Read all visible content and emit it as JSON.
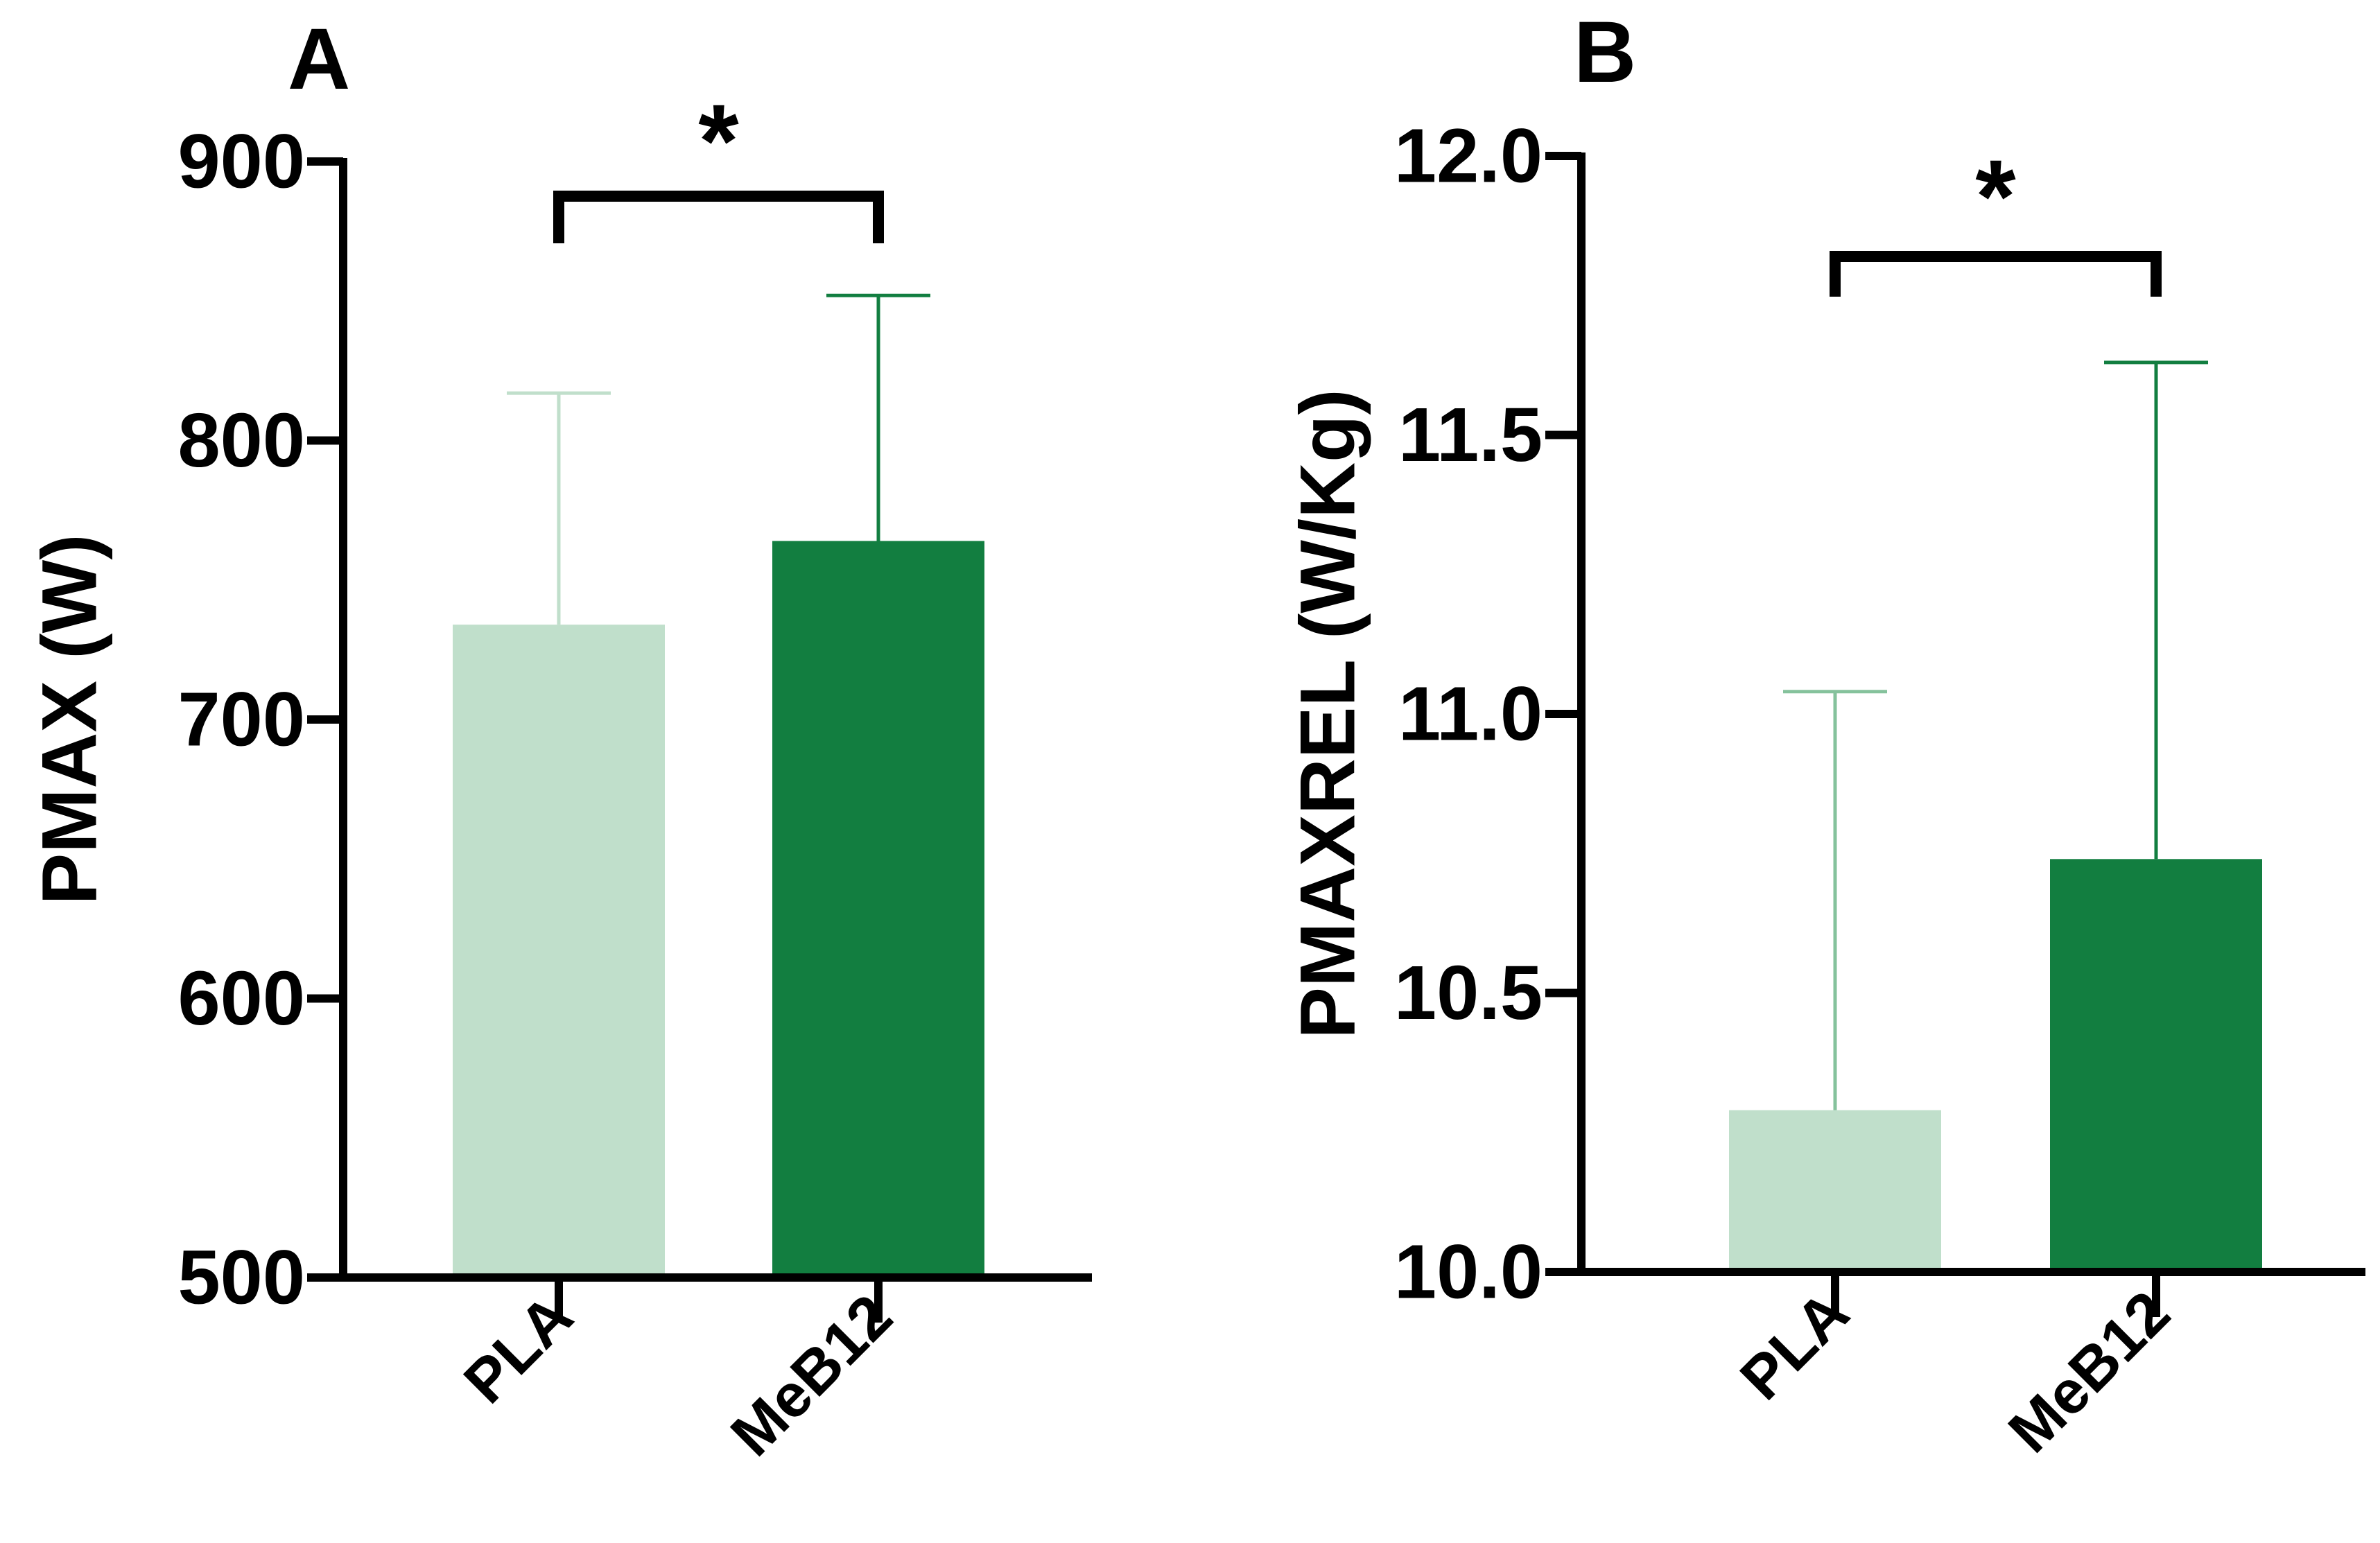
{
  "chart_data": [
    {
      "panel_label": "A",
      "type": "bar",
      "ylabel": "PMAX (W)",
      "categories": [
        "PLA",
        "MeB12"
      ],
      "values": [
        734,
        764
      ],
      "errors": [
        83,
        88
      ],
      "error_direction": [
        "up",
        "up-down"
      ],
      "colors": [
        "#c0dfcb",
        "#127e40"
      ],
      "error_colors": [
        "#c0dfcb",
        "#127e40"
      ],
      "ylim": [
        500,
        900
      ],
      "yticks": [
        500,
        600,
        700,
        800,
        900
      ],
      "ytick_labels": [
        "500",
        "600",
        "700",
        "800",
        "900"
      ],
      "significance": {
        "between": [
          "PLA",
          "MeB12"
        ],
        "label": "*"
      },
      "grid": false
    },
    {
      "panel_label": "B",
      "type": "bar",
      "ylabel": "PMAXREL (W/Kg)",
      "categories": [
        "PLA",
        "MeB12"
      ],
      "values": [
        10.29,
        10.74
      ],
      "errors": [
        0.75,
        0.89
      ],
      "error_direction": [
        "up",
        "up"
      ],
      "colors": [
        "#c0dfcb",
        "#127e40"
      ],
      "error_colors": [
        "#85c29c",
        "#127e40"
      ],
      "ylim": [
        10.0,
        12.0
      ],
      "yticks": [
        10.0,
        10.5,
        11.0,
        11.5,
        12.0
      ],
      "ytick_labels": [
        "10.0",
        "10.5",
        "11.0",
        "11.5",
        "12.0"
      ],
      "significance": {
        "between": [
          "PLA",
          "MeB12"
        ],
        "label": "*"
      },
      "grid": false
    }
  ]
}
